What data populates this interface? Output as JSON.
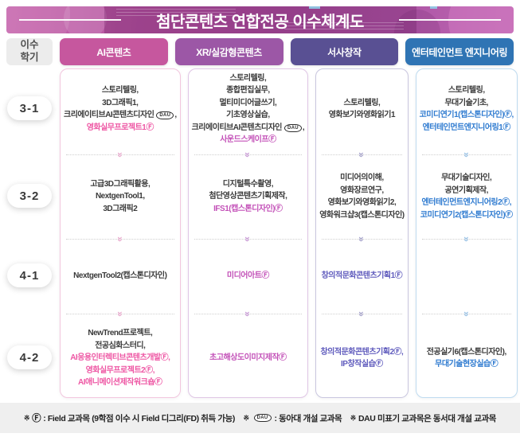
{
  "banner": {
    "title": "첨단콘텐츠 연합전공 이수체계도"
  },
  "semester_header": {
    "line1": "이수",
    "line2": "학기"
  },
  "symbols": {
    "field": "Ⓕ",
    "dau": "DAU"
  },
  "columns": [
    {
      "key": "ai",
      "label": "AI콘텐츠",
      "header_bg": "#c6579e",
      "border": "#f2c6de",
      "chevron": "#e9abce",
      "field_color": "#ee57a4"
    },
    {
      "key": "xr",
      "label": "XR/실감형콘텐츠",
      "header_bg": "#9c57a6",
      "border": "#dfc6e5",
      "chevron": "#c99bd6",
      "field_color": "#c351b8"
    },
    {
      "key": "narrative",
      "label": "서사창작",
      "header_bg": "#595093",
      "border": "#c9c6df",
      "chevron": "#a7a4cc",
      "field_color": "#5f5bbd"
    },
    {
      "key": "entertainment",
      "label": "엔터테인먼트 엔지니어링",
      "header_bg": "#2f74b4",
      "border": "#bedbf0",
      "chevron": "#9ac2e5",
      "field_color": "#2f7bd0"
    }
  ],
  "rows": [
    {
      "label": "3-1",
      "cells": [
        [
          {
            "name": "스토리텔링",
            "comma": true
          },
          {
            "name": "3D그래픽1",
            "comma": true
          },
          {
            "name": "크리에이티브AI콘텐츠디자인",
            "dau": true,
            "comma": true
          },
          {
            "name": "영화실무프로젝트1",
            "field": true
          }
        ],
        [
          {
            "name": "스토리텔링",
            "comma": true
          },
          {
            "name": "종합편집실무",
            "comma": true
          },
          {
            "name": "멀티미디어글쓰기",
            "comma": true
          },
          {
            "name": "기초영상실습",
            "comma": true
          },
          {
            "name": "크리에이티브AI콘텐츠디자인",
            "dau": true,
            "comma": true
          },
          {
            "name": "사운드스케이프",
            "field": true
          }
        ],
        [
          {
            "name": "스토리텔링",
            "comma": true
          },
          {
            "name": "영화보기와영화읽기1"
          }
        ],
        [
          {
            "name": "스토리텔링",
            "comma": true
          },
          {
            "name": "무대기술기초",
            "comma": true
          },
          {
            "name": "코미디연기1(캡스톤디자인)",
            "field": true,
            "comma": true
          },
          {
            "name": "엔터테인먼트엔지니어링1",
            "field": true
          }
        ]
      ]
    },
    {
      "label": "3-2",
      "cells": [
        [
          {
            "name": "고급3D그래픽활용",
            "comma": true
          },
          {
            "name": "NextgenTool1",
            "comma": true
          },
          {
            "name": "3D그래픽2"
          }
        ],
        [
          {
            "name": "디지털특수촬영",
            "comma": true
          },
          {
            "name": "첨단영상콘텐츠기획제작",
            "comma": true
          },
          {
            "name": "IFS1(캡스톤디자인)",
            "field": true
          }
        ],
        [
          {
            "name": "미디어의이해",
            "comma": true
          },
          {
            "name": "영화장르연구",
            "comma": true
          },
          {
            "name": "영화보기와영화읽기2",
            "comma": true
          },
          {
            "name": "영화워크샵3(캡스톤디자인)"
          }
        ],
        [
          {
            "name": "무대기술디자인",
            "comma": true
          },
          {
            "name": "공연기획제작",
            "comma": true
          },
          {
            "name": "엔터테인먼트엔지니어링2",
            "field": true,
            "comma": true
          },
          {
            "name": "코미디연기2(캡스톤디자인)",
            "field": true
          }
        ]
      ]
    },
    {
      "label": "4-1",
      "cells": [
        [
          {
            "name": "NextgenTool2(캡스톤디자인)"
          }
        ],
        [
          {
            "name": "미디어아트",
            "field": true
          }
        ],
        [
          {
            "name": "창의적문화콘텐츠기획1",
            "field": true
          }
        ],
        []
      ]
    },
    {
      "label": "4-2",
      "cells": [
        [
          {
            "name": "NewTrend프로젝트",
            "comma": true
          },
          {
            "name": "전공심화스터디",
            "comma": true
          },
          {
            "name": "AI응용인터렉티브콘텐츠개발",
            "field": true,
            "comma": true
          },
          {
            "name": "영화실무프로젝트2",
            "field": true,
            "comma": true
          },
          {
            "name": "AI애니메이션제작워크숍",
            "field": true
          }
        ],
        [
          {
            "name": "초고해상도이미지제작",
            "field": true
          }
        ],
        [
          {
            "name": "창의적문화콘텐츠기획2",
            "field": true,
            "comma": true
          },
          {
            "name": "IP창작실습",
            "field": true
          }
        ],
        [
          {
            "name": "전공실기6(캡스톤디자인)",
            "comma": true
          },
          {
            "name": "무대기술현장실습",
            "field": true
          }
        ]
      ]
    }
  ],
  "footnotes": [
    {
      "mark": "※",
      "symbol": "Ⓕ",
      "text": ": Field 교과목 (9학점 이수 시 Field 디그리(FD) 취득 가능)"
    },
    {
      "mark": "※",
      "badge": "DAU",
      "text": ": 동아대 개설 교과목"
    },
    {
      "mark": "※",
      "text": "DAU 미표기 교과목은 동서대 개설 교과목"
    }
  ]
}
